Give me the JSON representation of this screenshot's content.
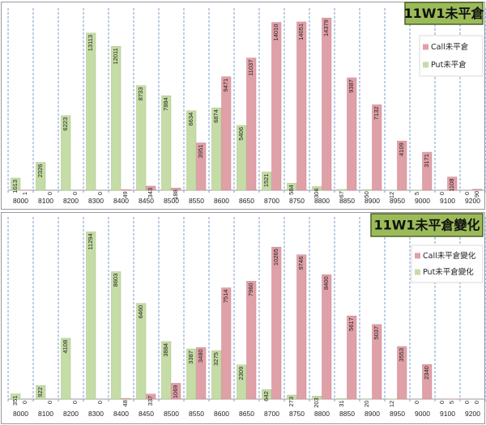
{
  "colors": {
    "call": "#e0a0a7",
    "call_edge": "#c98a92",
    "put": "#c6dca6",
    "put_edge": "#a9c184",
    "title_bg": "#9bbb59",
    "title_border": "#4f6228",
    "grid": "#5b86c5",
    "panel_border": "#9a9a9a"
  },
  "chart_data": [
    {
      "type": "bar",
      "title": "11W1未平倉",
      "categories": [
        "8000",
        "8100",
        "8200",
        "8300",
        "8400",
        "8450",
        "8500",
        "8550",
        "8600",
        "8650",
        "8700",
        "8750",
        "8800",
        "8850",
        "8900",
        "8950",
        "9000",
        "9100",
        "9200"
      ],
      "series": [
        {
          "name": "Call未平倉",
          "values": [
            1,
            0,
            0,
            0,
            49,
            343,
            188,
            3951,
            9471,
            11037,
            14010,
            14051,
            14379,
            9387,
            7132,
            4109,
            3171,
            1108,
            90
          ]
        },
        {
          "name": "Put未平倉",
          "values": [
            1013,
            2326,
            6223,
            13113,
            12011,
            8733,
            7884,
            6634,
            6874,
            5406,
            1521,
            584,
            306,
            67,
            50,
            12,
            5,
            0,
            0
          ]
        }
      ],
      "label_text": {
        "call": [
          "1",
          "0",
          "0",
          "0",
          "49",
          "343",
          "188",
          "3951",
          "9471",
          "11037",
          "14010",
          "14051",
          "14379",
          "9387",
          "7132",
          "4109",
          "3171",
          "1108",
          "90"
        ],
        "put": [
          "1013",
          "2326",
          "6223",
          "13113",
          "12011",
          "8733",
          "7884",
          "6634",
          "6874",
          "5406",
          "1521",
          "584",
          "306",
          "67",
          "50",
          "12",
          "5",
          "0",
          "0"
        ]
      },
      "ylim": [
        0,
        15200
      ],
      "legend": "right"
    },
    {
      "type": "bar",
      "title": "11W1未平倉變化",
      "categories": [
        "8000",
        "8100",
        "8200",
        "8300",
        "8400",
        "8450",
        "8500",
        "8550",
        "8600",
        "8650",
        "8700",
        "8750",
        "8800",
        "8850",
        "8900",
        "8950",
        "9000",
        "9100",
        "9200"
      ],
      "series": [
        {
          "name": "Call未平倉變化",
          "values": [
            0,
            0,
            0,
            0,
            48,
            337,
            1069,
            3480,
            7514,
            7960,
            10265,
            9746,
            8400,
            5617,
            5037,
            3553,
            2340,
            5,
            0
          ]
        },
        {
          "name": "Put未平倉變化",
          "values": [
            351,
            922,
            4108,
            11294,
            8603,
            6460,
            3884,
            3387,
            3275,
            2309,
            642,
            273,
            203,
            31,
            20,
            12,
            0,
            0,
            0
          ]
        }
      ],
      "label_text": {
        "call": [
          "0",
          "0",
          "0",
          "0",
          "48",
          "337",
          "1069",
          "3480",
          "7514",
          "7960",
          "10265",
          "9746",
          "8400",
          "5617",
          "5037",
          "3553",
          "2340",
          "5",
          "0"
        ],
        "put": [
          "351",
          "922",
          "4108",
          "11294",
          "8603",
          "6460",
          "3884",
          "3387",
          "3275",
          "2309",
          "642",
          "273",
          "203",
          "31",
          "20",
          "12",
          "0",
          "0",
          "0"
        ]
      },
      "ylim": [
        0,
        12300
      ],
      "legend": "right"
    }
  ]
}
